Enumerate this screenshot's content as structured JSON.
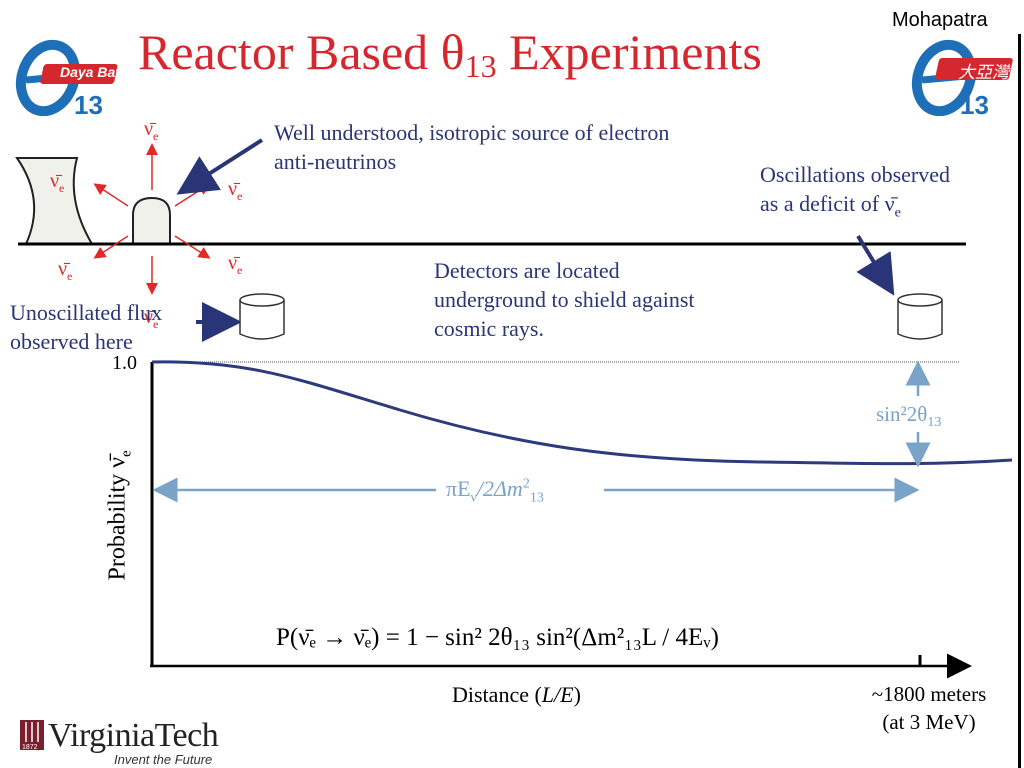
{
  "header": {
    "author": "Mohapatra",
    "title_main": "Reactor Based θ",
    "title_sub": "13",
    "title_end": " Experiments",
    "logo_left_text": "Daya Bay",
    "logo_left_number": "13",
    "logo_right_text": "大亞灣",
    "logo_right_number": "13"
  },
  "annotations": {
    "source": "Well understood, isotropic source of electron anti-neutrinos",
    "oscillations_line1": "Oscillations observed",
    "oscillations_line2": "as a deficit of ν̄",
    "oscillations_sub": "e",
    "detectors": "Detectors are located underground to shield against cosmic rays.",
    "unoscillated": "Unoscillated flux observed here"
  },
  "neutrino_labels": {
    "symbol": "ν̄",
    "subscript": "e"
  },
  "plot": {
    "y_max_label": "1.0",
    "y_axis_label": "Probability ν̄",
    "y_axis_sub": "e",
    "x_axis_label_pre": "Distance (",
    "x_axis_label_var": "L/E",
    "x_axis_label_post": ")",
    "amplitude_label": "sin²2θ",
    "amplitude_sub": "13",
    "period_label": "πE",
    "period_sub": "ν",
    "period_mid": "/2Δm",
    "period_sup": "2",
    "period_sub2": "13",
    "distance_label_line1": "~1800 meters",
    "distance_label_line2": "(at 3 MeV)",
    "formula": "P(ν̄ₑ → ν̄ₑ) = 1 − sin² 2θ₁₃ sin²(Δm²₁₃L / 4Eᵥ)"
  },
  "footer": {
    "university": "VirginiaTech",
    "tagline": "Invent the Future",
    "year": "1872"
  },
  "colors": {
    "title_red": "#d4282e",
    "navy": "#2a3577",
    "light_blue": "#7aa3c8",
    "neutrino_red": "#e02a2a",
    "curve": "#2d3a7c",
    "logo_blue": "#1e6fb8",
    "vt_maroon": "#7b1f2e"
  }
}
